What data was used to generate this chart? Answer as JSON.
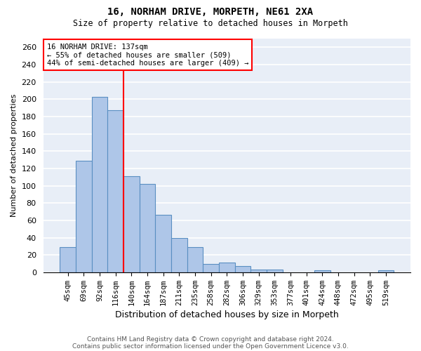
{
  "title1": "16, NORHAM DRIVE, MORPETH, NE61 2XA",
  "title2": "Size of property relative to detached houses in Morpeth",
  "xlabel": "Distribution of detached houses by size in Morpeth",
  "ylabel": "Number of detached properties",
  "categories": [
    "45sqm",
    "69sqm",
    "92sqm",
    "116sqm",
    "140sqm",
    "164sqm",
    "187sqm",
    "211sqm",
    "235sqm",
    "258sqm",
    "282sqm",
    "306sqm",
    "329sqm",
    "353sqm",
    "377sqm",
    "401sqm",
    "424sqm",
    "448sqm",
    "472sqm",
    "495sqm",
    "519sqm"
  ],
  "values": [
    29,
    129,
    203,
    187,
    111,
    102,
    66,
    40,
    29,
    10,
    11,
    7,
    3,
    3,
    0,
    0,
    2,
    0,
    0,
    0,
    2
  ],
  "bar_color": "#aec6e8",
  "bar_edge_color": "#5a8fc2",
  "annotation_text": "16 NORHAM DRIVE: 137sqm\n← 55% of detached houses are smaller (509)\n44% of semi-detached houses are larger (409) →",
  "annotation_box_color": "white",
  "annotation_box_edge": "red",
  "vline_color": "red",
  "ylim": [
    0,
    270
  ],
  "yticks": [
    0,
    20,
    40,
    60,
    80,
    100,
    120,
    140,
    160,
    180,
    200,
    220,
    240,
    260
  ],
  "background_color": "#e8eef7",
  "grid_color": "white",
  "footer1": "Contains HM Land Registry data © Crown copyright and database right 2024.",
  "footer2": "Contains public sector information licensed under the Open Government Licence v3.0."
}
